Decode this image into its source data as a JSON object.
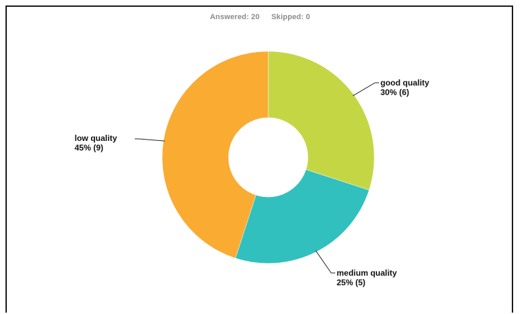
{
  "header": {
    "answered": "Answered: 20",
    "skipped": "Skipped: 0"
  },
  "chart_data": {
    "type": "pie",
    "donut": true,
    "total": 20,
    "start_angle_deg": 0,
    "slices": [
      {
        "label": "good quality",
        "count": 6,
        "percent": 30,
        "value_label": "30% (6)",
        "color": "#c5d645"
      },
      {
        "label": "medium quality",
        "count": 5,
        "percent": 25,
        "value_label": "25% (5)",
        "color": "#31c0bd"
      },
      {
        "label": "low quality",
        "count": 9,
        "percent": 45,
        "value_label": "45% (9)",
        "color": "#faab32"
      }
    ],
    "legend": "none",
    "data_labels": "outside"
  }
}
